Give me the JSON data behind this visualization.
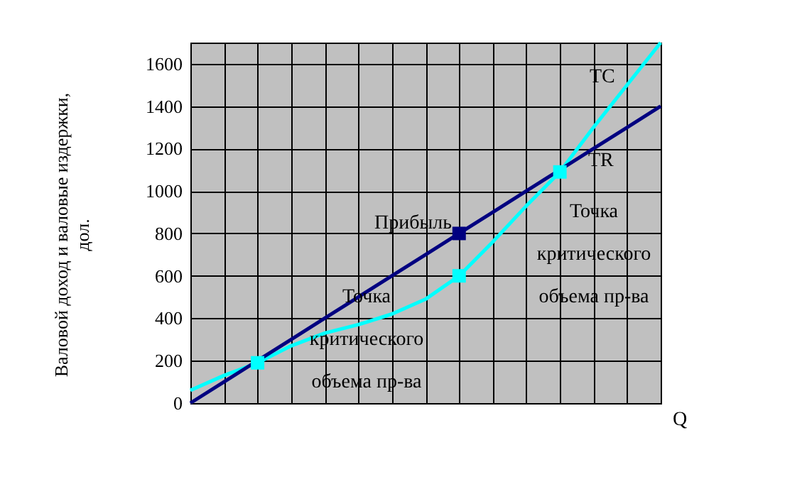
{
  "chart_data": {
    "type": "line",
    "xlabel": "Q",
    "ylabel": "Валовой доход и валовые издержки,\nдол.",
    "categories": [
      null,
      null,
      null,
      null,
      null,
      null,
      null,
      null,
      null,
      null,
      null,
      null,
      null,
      null,
      null
    ],
    "ylim": [
      0,
      1700
    ],
    "yticks": [
      0,
      200,
      400,
      600,
      800,
      1000,
      1200,
      1400,
      1600
    ],
    "grid": true,
    "tick_labels": "y",
    "marker": "none",
    "line_style": "solid",
    "series": [
      {
        "name": "TC",
        "color": "#00ffff",
        "values": [
          60,
          130,
          190,
          270,
          330,
          370,
          420,
          490,
          600,
          760,
          930,
          1090,
          1300,
          1500,
          1700
        ]
      },
      {
        "name": "TR",
        "color": "#000080",
        "values": [
          0,
          100,
          200,
          300,
          400,
          500,
          600,
          700,
          800,
          900,
          1000,
          1100,
          1200,
          1300,
          1400
        ]
      },
      {
        "type": "scatter",
        "marker": "square",
        "color": "#00ffff",
        "values": [
          null,
          null,
          190,
          null,
          null,
          null,
          null,
          null,
          600,
          null,
          null,
          1090,
          null,
          null,
          null
        ]
      },
      {
        "type": "scatter",
        "marker": "square",
        "color": "#000080",
        "values": [
          null,
          null,
          null,
          null,
          null,
          null,
          null,
          null,
          800,
          null,
          null,
          null,
          null,
          null,
          null
        ]
      }
    ],
    "annotations": [
      "Прибыль",
      "Точка\nкритического\nобъема пр-ва",
      "Точка\nкритического\nобъема пр-ва"
    ]
  }
}
